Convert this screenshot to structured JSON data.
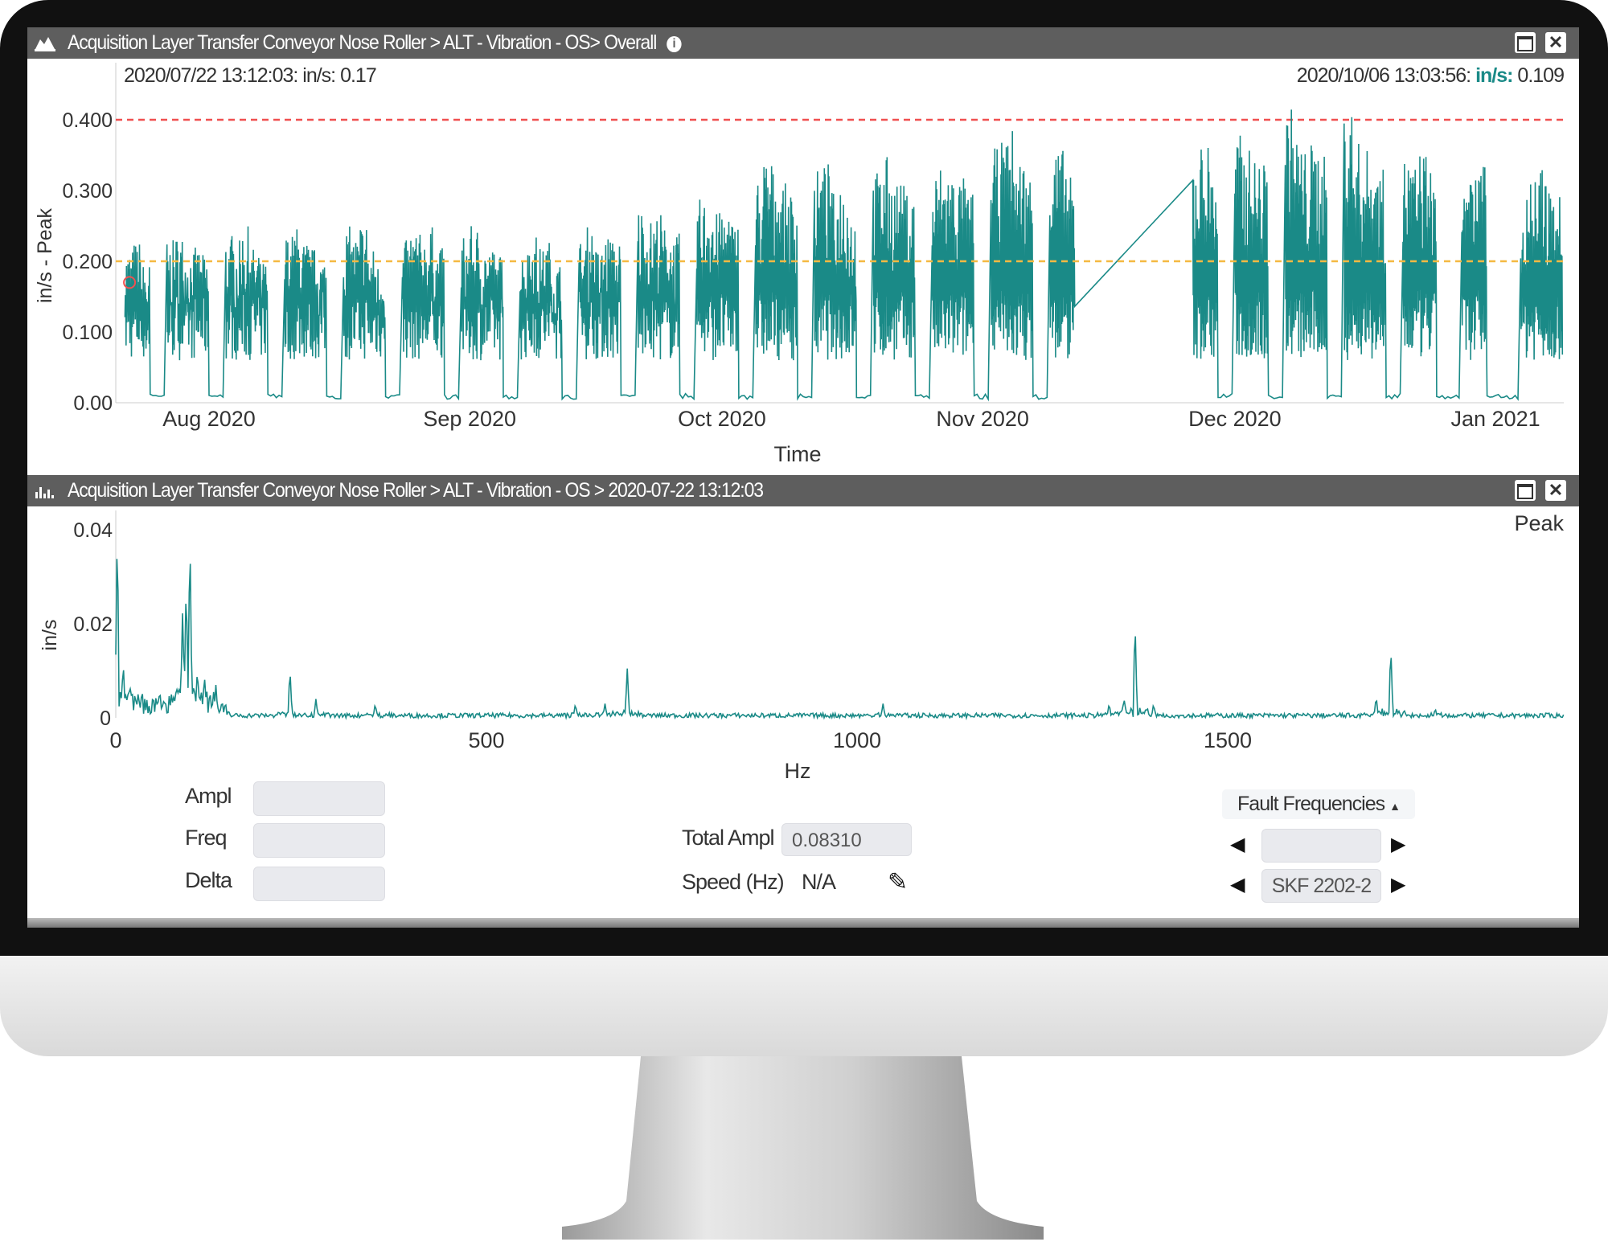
{
  "top_panel": {
    "title": "Acquisition Layer Transfer Conveyor Nose Roller > ALT - Vibration - OS> Overall",
    "icons": {
      "panel": "area-chart-icon",
      "info": "info-icon",
      "maximize": "maximize-icon",
      "close": "close-icon"
    },
    "cursor_left": "2020/07/22 13:12:03: in/s: 0.17",
    "cursor_right": {
      "time": "2020/10/06 13:03:56: ",
      "unit": "in/s:",
      "value": " 0.109"
    }
  },
  "bottom_panel": {
    "title": "Acquisition Layer Transfer Conveyor Nose Roller > ALT - Vibration - OS > 2020-07-22 13:12:03",
    "icons": {
      "panel": "spectrum-chart-icon",
      "maximize": "maximize-icon",
      "close": "close-icon"
    },
    "mode_label": "Peak"
  },
  "controls": {
    "ampl_label": "Ampl",
    "ampl_value": "",
    "freq_label": "Freq",
    "freq_value": "",
    "delta_label": "Delta",
    "delta_value": "",
    "total_ampl_label": "Total Ampl",
    "total_ampl_value": "0.08310",
    "speed_label": "Speed (Hz)",
    "speed_value": "N/A",
    "fault_frequencies_label": "Fault Frequencies",
    "fault_row1_value": "",
    "fault_row2_value": "SKF 2202-2"
  },
  "colors": {
    "series": "#1a8a87",
    "alarm": "#f05050",
    "warning": "#f5b942",
    "titlebar": "#5e5e5e"
  },
  "chart_data": [
    {
      "type": "line",
      "xlabel": "Time",
      "ylabel": "in/s - Peak",
      "ylim": [
        0,
        0.42
      ],
      "yticks": [
        "0.400",
        "0.300",
        "0.200",
        "0.100",
        "0.00"
      ],
      "xticks": [
        "Aug 2020",
        "Sep 2020",
        "Oct 2020",
        "Nov 2020",
        "Dec 2020",
        "Jan 2021"
      ],
      "thresholds": {
        "alarm": 0.4,
        "warning": 0.2
      },
      "selected_point": {
        "x": "2020-07-22",
        "y": 0.17
      },
      "series": [
        {
          "start": "2020-07-22",
          "interval": "day",
          "daily_max": [
            0.22,
            0.23,
            0.2,
            0.01,
            0.01,
            0.23,
            0.24,
            0.22,
            0.22,
            0.21,
            0.01,
            0.01,
            0.24,
            0.23,
            0.25,
            0.22,
            0.2,
            0.01,
            0.01,
            0.24,
            0.25,
            0.23,
            0.22,
            0.21,
            0.01,
            0.01,
            0.25,
            0.24,
            0.26,
            0.22,
            0.2,
            0.01,
            0.01,
            0.23,
            0.25,
            0.24,
            0.25,
            0.22,
            0.01,
            0.01,
            0.24,
            0.25,
            0.23,
            0.22,
            0.21,
            0.01,
            0.01,
            0.22,
            0.24,
            0.22,
            0.23,
            0.2,
            0.01,
            0.01,
            0.23,
            0.25,
            0.22,
            0.24,
            0.23,
            0.01,
            0.01,
            0.28,
            0.26,
            0.27,
            0.25,
            0.24,
            0.01,
            0.01,
            0.29,
            0.3,
            0.27,
            0.28,
            0.26,
            0.01,
            0.01,
            0.32,
            0.35,
            0.33,
            0.31,
            0.3,
            0.01,
            0.01,
            0.33,
            0.34,
            0.3,
            0.32,
            0.28,
            0.01,
            0.01,
            0.33,
            0.35,
            0.32,
            0.31,
            0.3,
            0.01,
            0.01,
            0.33,
            0.34,
            0.33,
            0.32,
            0.3,
            0.01,
            0.01,
            0.36,
            0.37,
            0.39,
            0.35,
            0.33,
            0.01,
            0.01,
            0.37,
            0.36,
            0.32,
            null,
            null,
            null,
            null,
            null,
            null,
            null,
            null,
            null,
            null,
            null,
            null,
            null,
            null,
            0.36,
            0.37,
            0.34,
            0.01,
            0.01,
            0.38,
            0.36,
            0.35,
            0.34,
            0.01,
            0.01,
            0.42,
            0.38,
            0.36,
            0.37,
            0.35,
            0.01,
            0.01,
            0.42,
            0.37,
            0.36,
            0.35,
            0.33,
            0.01,
            0.01,
            0.35,
            0.34,
            0.36,
            0.33,
            0.01,
            0.01,
            0.01,
            0.33,
            0.32,
            0.35,
            0.01,
            0.01,
            0.01,
            0.01,
            0.3,
            0.32,
            0.33,
            0.31,
            0.3
          ]
        }
      ]
    },
    {
      "type": "line",
      "xlabel": "Hz",
      "ylabel": "in/s",
      "xlim": [
        0,
        1953
      ],
      "ylim": [
        0,
        0.042
      ],
      "xticks": [
        "0",
        "500",
        "1000",
        "1500"
      ],
      "yticks": [
        "0.04",
        "0.02",
        "0"
      ],
      "baseline": 0.0005,
      "peaks": [
        [
          2,
          0.04
        ],
        [
          10,
          0.012
        ],
        [
          30,
          0.005
        ],
        [
          60,
          0.004
        ],
        [
          90,
          0.02
        ],
        [
          95,
          0.028
        ],
        [
          100,
          0.039
        ],
        [
          110,
          0.01
        ],
        [
          120,
          0.008
        ],
        [
          135,
          0.007
        ],
        [
          235,
          0.0105
        ],
        [
          270,
          0.004
        ],
        [
          350,
          0.003
        ],
        [
          620,
          0.003
        ],
        [
          660,
          0.003
        ],
        [
          690,
          0.0105
        ],
        [
          1035,
          0.003
        ],
        [
          1340,
          0.003
        ],
        [
          1360,
          0.004
        ],
        [
          1375,
          0.0208
        ],
        [
          1400,
          0.003
        ],
        [
          1700,
          0.004
        ],
        [
          1720,
          0.0153
        ],
        [
          1780,
          0.002
        ]
      ]
    }
  ]
}
